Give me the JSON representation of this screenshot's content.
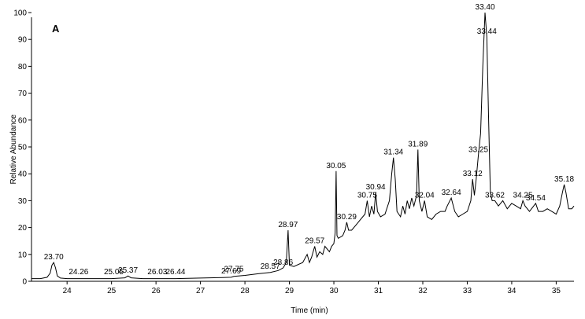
{
  "chart_data": {
    "type": "line",
    "panel_label": "A",
    "xlabel": "Time (min)",
    "ylabel": "Relative Abundance",
    "xlim": [
      23.2,
      35.4
    ],
    "ylim": [
      0,
      100
    ],
    "x_ticks": [
      24,
      25,
      26,
      27,
      28,
      29,
      30,
      31,
      32,
      33,
      34,
      35
    ],
    "y_ticks": [
      0,
      10,
      20,
      30,
      40,
      50,
      60,
      70,
      80,
      90,
      100
    ],
    "grid": false,
    "line_color": "#000000",
    "peak_labels": [
      {
        "text": "23.70",
        "x": 23.7,
        "y": 7
      },
      {
        "text": "24.26",
        "x": 24.26,
        "y": 1.5
      },
      {
        "text": "25.05",
        "x": 25.05,
        "y": 1.5
      },
      {
        "text": "25.37",
        "x": 25.37,
        "y": 2
      },
      {
        "text": "26.03",
        "x": 26.03,
        "y": 1.5
      },
      {
        "text": "26.44",
        "x": 26.44,
        "y": 1.5
      },
      {
        "text": "27.69",
        "x": 27.69,
        "y": 1.8
      },
      {
        "text": "27.75",
        "x": 27.75,
        "y": 2.5
      },
      {
        "text": "28.57",
        "x": 28.57,
        "y": 3.5
      },
      {
        "text": "28.86",
        "x": 28.86,
        "y": 5
      },
      {
        "text": "28.97",
        "x": 28.97,
        "y": 19
      },
      {
        "text": "29.57",
        "x": 29.57,
        "y": 13
      },
      {
        "text": "30.05",
        "x": 30.05,
        "y": 41
      },
      {
        "text": "30.29",
        "x": 30.29,
        "y": 22
      },
      {
        "text": "30.75",
        "x": 30.75,
        "y": 30
      },
      {
        "text": "30.94",
        "x": 30.94,
        "y": 33
      },
      {
        "text": "31.34",
        "x": 31.34,
        "y": 46
      },
      {
        "text": "31.89",
        "x": 31.89,
        "y": 49
      },
      {
        "text": "32.04",
        "x": 32.04,
        "y": 30
      },
      {
        "text": "32.64",
        "x": 32.64,
        "y": 31
      },
      {
        "text": "33.12",
        "x": 33.12,
        "y": 38
      },
      {
        "text": "33.25",
        "x": 33.25,
        "y": 47
      },
      {
        "text": "33.40",
        "x": 33.4,
        "y": 100
      },
      {
        "text": "33.44",
        "x": 33.44,
        "y": 91
      },
      {
        "text": "33.62",
        "x": 33.62,
        "y": 30
      },
      {
        "text": "34.25",
        "x": 34.25,
        "y": 30
      },
      {
        "text": "34.54",
        "x": 34.54,
        "y": 29
      },
      {
        "text": "35.18",
        "x": 35.18,
        "y": 36
      }
    ],
    "series": [
      {
        "x": [
          23.2,
          23.4,
          23.55,
          23.62,
          23.66,
          23.7,
          23.74,
          23.78,
          23.85,
          24.0,
          24.26,
          24.6,
          25.0,
          25.3,
          25.37,
          25.44,
          25.7,
          26.03,
          26.44,
          27.0,
          27.5,
          27.69,
          27.75,
          28.0,
          28.3,
          28.57,
          28.75,
          28.86,
          28.93,
          28.97,
          29.0,
          29.1,
          29.3,
          29.4,
          29.45,
          29.5,
          29.57,
          29.62,
          29.68,
          29.75,
          29.8,
          29.9,
          29.95,
          30.0,
          30.03,
          30.05,
          30.07,
          30.1,
          30.2,
          30.25,
          30.29,
          30.33,
          30.4,
          30.5,
          30.6,
          30.7,
          30.75,
          30.8,
          30.85,
          30.9,
          30.94,
          30.98,
          31.05,
          31.15,
          31.25,
          31.3,
          31.34,
          31.38,
          31.42,
          31.5,
          31.55,
          31.6,
          31.65,
          31.7,
          31.75,
          31.8,
          31.86,
          31.89,
          31.92,
          31.98,
          32.04,
          32.1,
          32.2,
          32.3,
          32.4,
          32.5,
          32.55,
          32.64,
          32.72,
          32.8,
          32.9,
          33.0,
          33.08,
          33.12,
          33.16,
          33.2,
          33.25,
          33.3,
          33.35,
          33.4,
          33.44,
          33.48,
          33.52,
          33.56,
          33.62,
          33.7,
          33.8,
          33.9,
          34.0,
          34.1,
          34.2,
          34.25,
          34.3,
          34.4,
          34.54,
          34.6,
          34.7,
          34.8,
          34.9,
          35.0,
          35.08,
          35.14,
          35.18,
          35.22,
          35.28,
          35.35,
          35.4
        ],
        "y": [
          1,
          1,
          1.5,
          3,
          6,
          7,
          5,
          2,
          1.2,
          1,
          1,
          1,
          1,
          1.3,
          2,
          1.3,
          1,
          1,
          1,
          1.2,
          1.4,
          1.5,
          1.8,
          2.2,
          2.8,
          3.3,
          4,
          5,
          7,
          19,
          6,
          5.5,
          7,
          10,
          7,
          9,
          13,
          9,
          11,
          10,
          13,
          11,
          13,
          14,
          18,
          41,
          17,
          16,
          17,
          19,
          22,
          19,
          19,
          21,
          23,
          25,
          30,
          24,
          28,
          25,
          33,
          26,
          24,
          25,
          30,
          40,
          46,
          38,
          26,
          24,
          28,
          25,
          30,
          27,
          31,
          28,
          32,
          49,
          30,
          26,
          30,
          24,
          23,
          25,
          26,
          26,
          28,
          31,
          26,
          24,
          25,
          26,
          30,
          38,
          32,
          38,
          47,
          55,
          80,
          100,
          91,
          60,
          33,
          30,
          30,
          28,
          30,
          27,
          29,
          28,
          27,
          30,
          28,
          26,
          29,
          26,
          26,
          27,
          26,
          25,
          28,
          33,
          36,
          33,
          27,
          27,
          28
        ]
      }
    ]
  }
}
